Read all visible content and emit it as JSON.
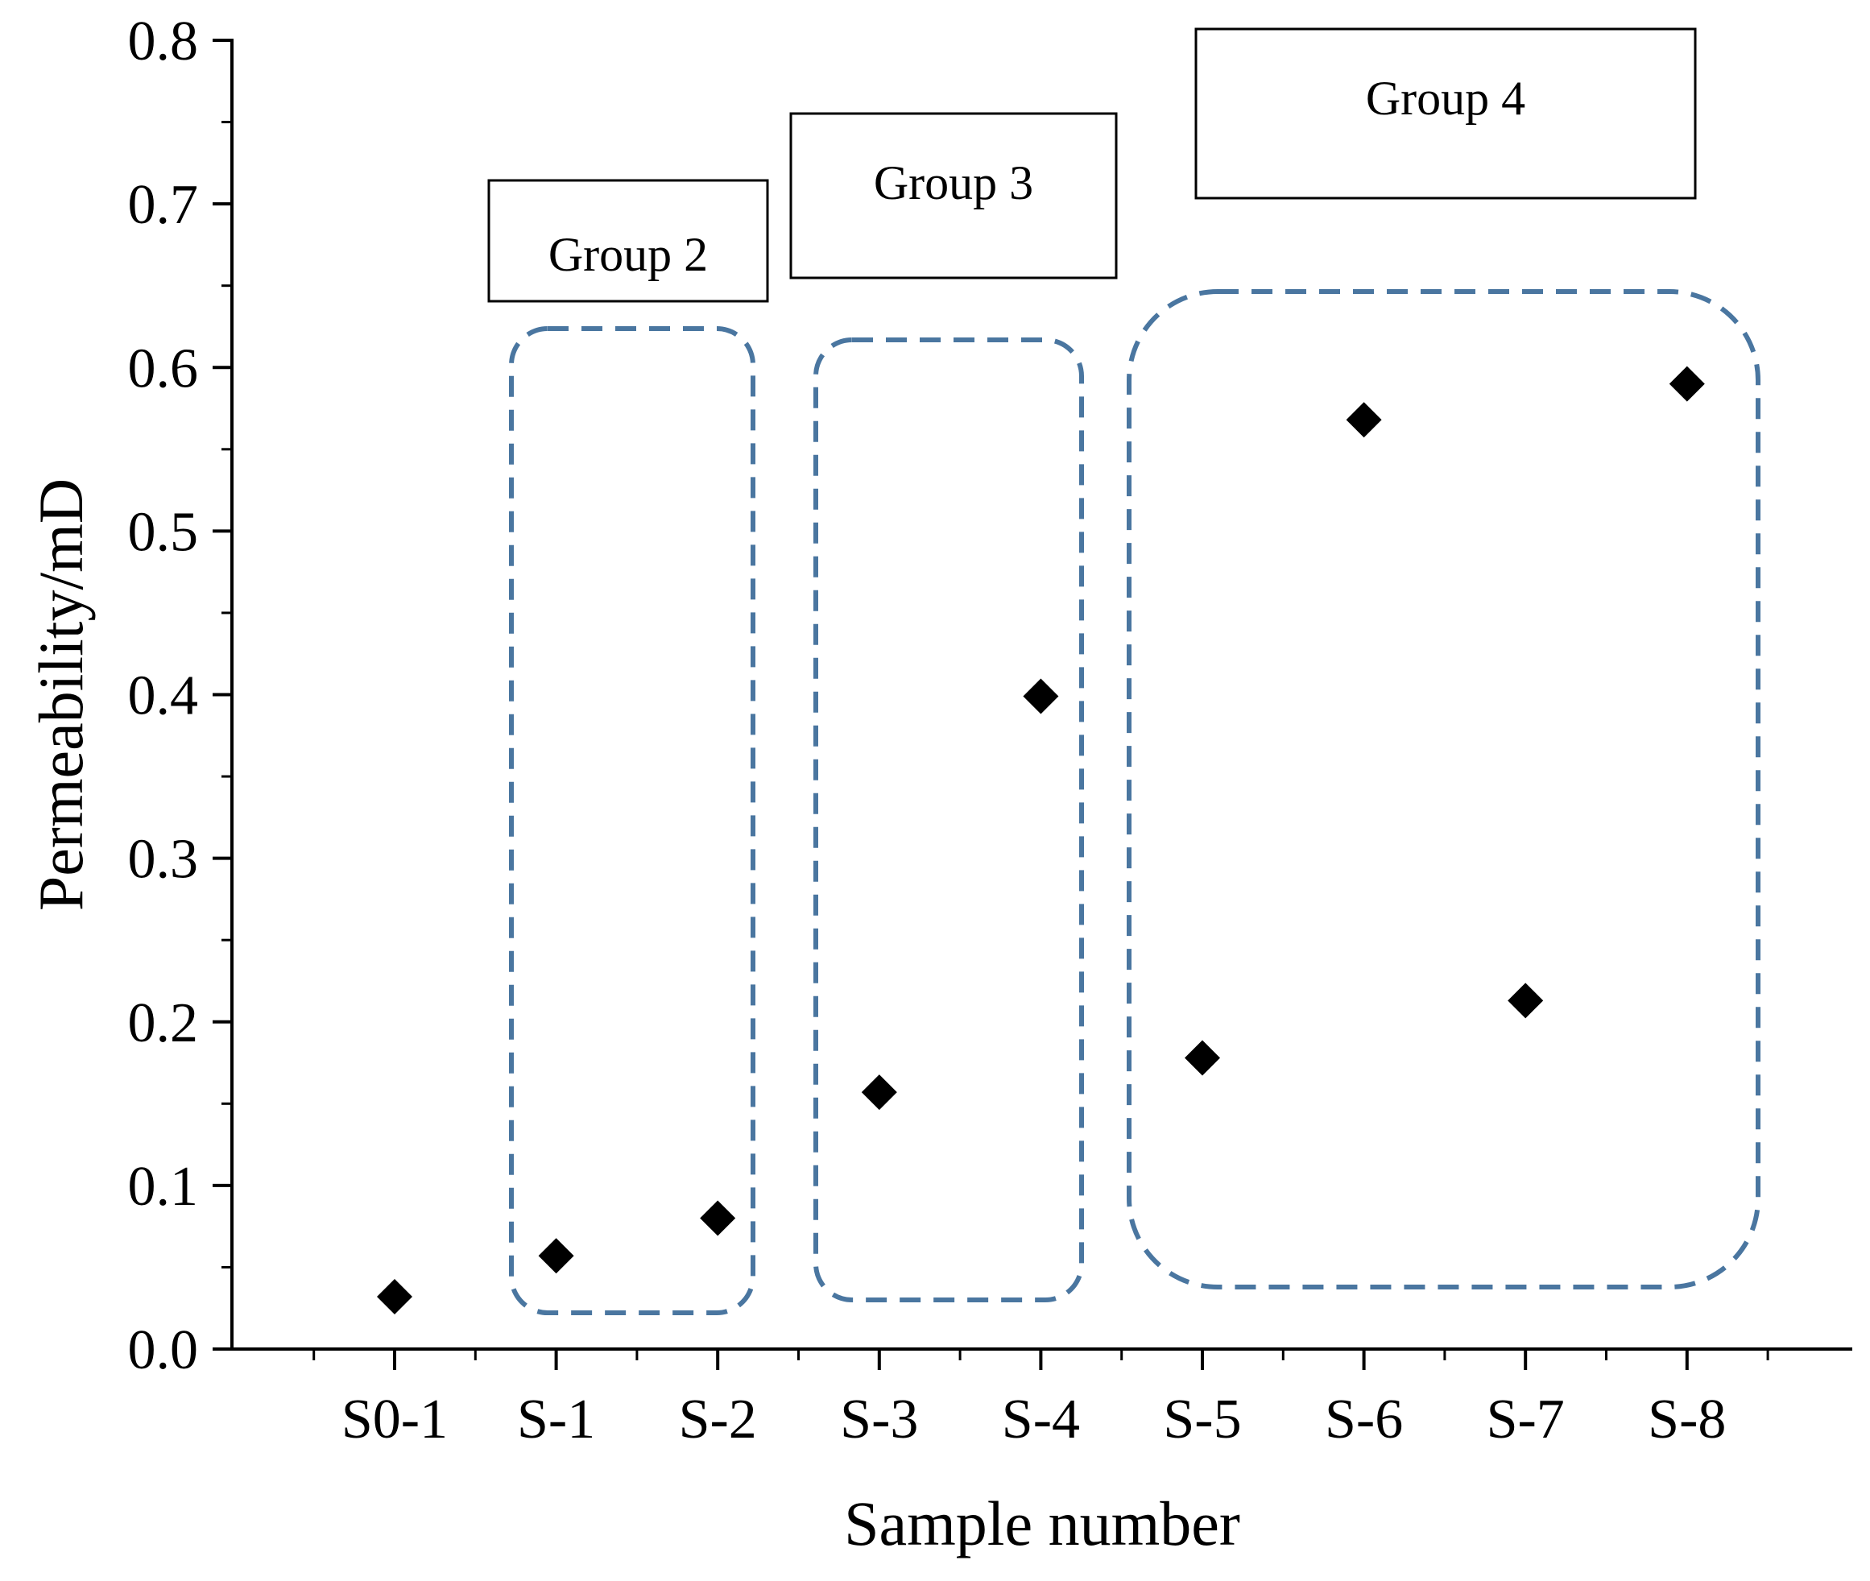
{
  "chart_data": {
    "type": "scatter",
    "xlabel": "Sample number",
    "ylabel": "Permeability/mD",
    "categories": [
      "S0-1",
      "S-1",
      "S-2",
      "S-3",
      "S-4",
      "S-5",
      "S-6",
      "S-7",
      "S-8"
    ],
    "values": [
      0.032,
      0.057,
      0.08,
      0.157,
      0.399,
      0.178,
      0.568,
      0.213,
      0.59
    ],
    "ylim": [
      0,
      0.8
    ],
    "yticks": [
      0.0,
      0.1,
      0.2,
      0.3,
      0.4,
      0.5,
      0.6,
      0.7,
      0.8
    ],
    "ytick_labels": [
      "0.0",
      "0.1",
      "0.2",
      "0.3",
      "0.4",
      "0.5",
      "0.6",
      "0.7",
      "0.8"
    ],
    "grid": false,
    "marker": "diamond",
    "marker_color": "#000000",
    "group_color": "#4a76a0",
    "groups": [
      {
        "label": "Group 2",
        "members": [
          "S-1",
          "S-2"
        ]
      },
      {
        "label": "Group 3",
        "members": [
          "S-3",
          "S-4"
        ]
      },
      {
        "label": "Group 4",
        "members": [
          "S-5",
          "S-6",
          "S-7",
          "S-8"
        ]
      }
    ]
  }
}
